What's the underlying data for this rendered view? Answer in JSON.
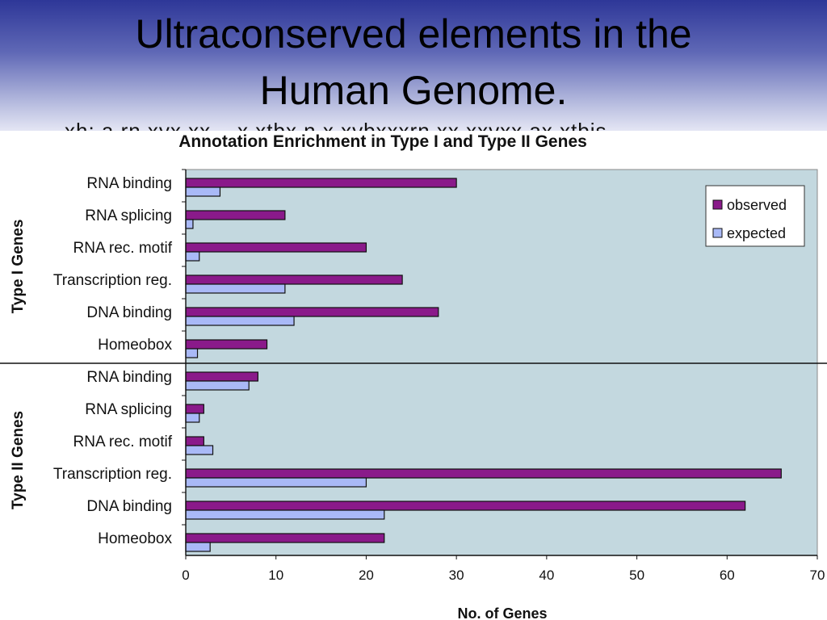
{
  "slide": {
    "title_line1": "Ultraconserved elements in the",
    "title_line2": "Human Genome.",
    "cut_text": "xh: a.rn.xyx.xx . .x.xtbx.n.x.xybxxxrn.xx.xxyxx.ax.xtbis"
  },
  "colors": {
    "observed": "#8a1a8a",
    "expected": "#a9b9f7",
    "plot_background": "#c3d8df",
    "header_top": "#2e3798",
    "header_bottom": "#e4e6f4"
  },
  "chart_data": {
    "type": "bar",
    "orientation": "horizontal",
    "title": "Annotation Enrichment in Type I and Type II Genes",
    "xlabel": "No. of Genes",
    "xlim": [
      0,
      70
    ],
    "xticks": [
      0,
      10,
      20,
      30,
      40,
      50,
      60,
      70
    ],
    "grid": false,
    "legend_position": "top-right",
    "legend": [
      "observed",
      "expected"
    ],
    "groups": [
      {
        "name": "Type I Genes",
        "categories": [
          "RNA binding",
          "RNA splicing",
          "RNA rec. motif",
          "Transcription reg.",
          "DNA binding",
          "Homeobox"
        ],
        "series": [
          {
            "name": "observed",
            "values": [
              30,
              11,
              20,
              24,
              28,
              9
            ]
          },
          {
            "name": "expected",
            "values": [
              3.8,
              0.8,
              1.5,
              11,
              12,
              1.3
            ]
          }
        ]
      },
      {
        "name": "Type II Genes",
        "categories": [
          "RNA binding",
          "RNA splicing",
          "RNA rec. motif",
          "Transcription reg.",
          "DNA binding",
          "Homeobox"
        ],
        "series": [
          {
            "name": "observed",
            "values": [
              8,
              2,
              2,
              66,
              62,
              22
            ]
          },
          {
            "name": "expected",
            "values": [
              7,
              1.5,
              3,
              20,
              22,
              2.7
            ]
          }
        ]
      }
    ]
  }
}
